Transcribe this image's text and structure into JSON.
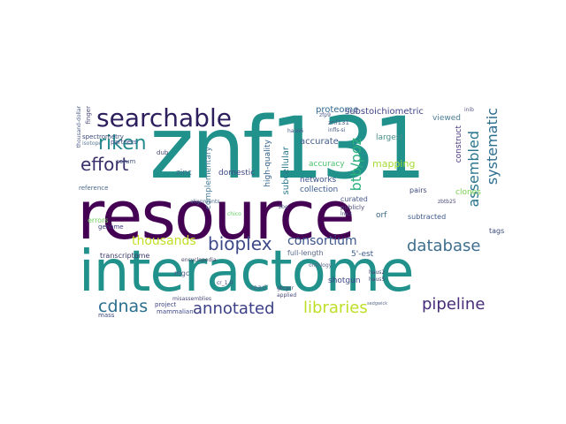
{
  "words": [
    {
      "text": "resource",
      "color": "#440154"
    },
    {
      "text": "interactome",
      "color": "#21918c"
    },
    {
      "text": "znf131",
      "color": "#21918c"
    },
    {
      "text": "searchable",
      "color": "#2d1e5e"
    },
    {
      "text": "riken",
      "color": "#238a8d"
    },
    {
      "text": "effort",
      "color": "#3b2f6b"
    },
    {
      "text": "bioplex",
      "color": "#3e4989"
    },
    {
      "text": "database",
      "color": "#3e6f8e"
    },
    {
      "text": "annotated",
      "color": "#3b3f86"
    },
    {
      "text": "cdnas",
      "color": "#2a6f8e"
    },
    {
      "text": "libraries",
      "color": "#bddf26"
    },
    {
      "text": "pipeline",
      "color": "#472c7a"
    },
    {
      "text": "consortium",
      "color": "#3a548c"
    },
    {
      "text": "thousands",
      "color": "#c2df23"
    },
    {
      "text": "assembled",
      "color": "#2a768e"
    },
    {
      "text": "systematic",
      "color": "#2c6e8e"
    },
    {
      "text": "btb/poz",
      "color": "#2db27d"
    },
    {
      "text": "proteome",
      "color": "#31688e"
    },
    {
      "text": "substoichiometric",
      "color": "#414487"
    },
    {
      "text": "inib",
      "color": "#5a5a8a"
    },
    {
      "text": "viewed",
      "color": "#4a7c96"
    },
    {
      "text": "construct",
      "color": "#46337e"
    },
    {
      "text": "largest",
      "color": "#4a8d8c"
    },
    {
      "text": "accurate",
      "color": "#3f5b8c"
    },
    {
      "text": "accuracy",
      "color": "#4ac16d"
    },
    {
      "text": "mapping",
      "color": "#a5db36"
    },
    {
      "text": "networks",
      "color": "#3b528b"
    },
    {
      "text": "collection",
      "color": "#38598c"
    },
    {
      "text": "subcellular",
      "color": "#2a788e"
    },
    {
      "text": "high-quality",
      "color": "#30628d"
    },
    {
      "text": "domestic",
      "color": "#3f4a8a"
    },
    {
      "text": "complementary",
      "color": "#4b7e9a"
    },
    {
      "text": "zinc",
      "color": "#3c6d8e"
    },
    {
      "text": "dub",
      "color": "#4a4a7a"
    },
    {
      "text": "corum",
      "color": "#4a5a8a"
    },
    {
      "text": "partners",
      "color": "#4a4a8a"
    },
    {
      "text": "spectrometry",
      "color": "#3a4a7a"
    },
    {
      "text": "isotope",
      "color": "#5a7a9a"
    },
    {
      "text": "reference",
      "color": "#4a6a8a"
    },
    {
      "text": "errors",
      "color": "#6ccd5a"
    },
    {
      "text": "genome",
      "color": "#3b3b7b"
    },
    {
      "text": "transcriptome",
      "color": "#3a3a6a"
    },
    {
      "text": "mass",
      "color": "#3e4a7e"
    },
    {
      "text": "mammalian",
      "color": "#3e4a89"
    },
    {
      "text": "project",
      "color": "#3f4788"
    },
    {
      "text": "mgc",
      "color": "#4a5a8a"
    },
    {
      "text": "encyclopedia",
      "color": "#4a4a6a"
    },
    {
      "text": "full-length",
      "color": "#5a6a8a"
    },
    {
      "text": "read",
      "color": "#4a6a8a"
    },
    {
      "text": "shotgun",
      "color": "#3f4788"
    },
    {
      "text": "5'-est",
      "color": "#3a5a8a"
    },
    {
      "text": "curated",
      "color": "#4a5a8a"
    },
    {
      "text": "publicly",
      "color": "#4a4a7a"
    },
    {
      "text": "orf",
      "color": "#3a6a8a"
    },
    {
      "text": "pairs",
      "color": "#3f4a7a"
    },
    {
      "text": "subtracted",
      "color": "#3f5a8a"
    },
    {
      "text": "clones",
      "color": "#7ad151"
    },
    {
      "text": "tags",
      "color": "#3a4a7a"
    },
    {
      "text": "misassemblies",
      "color": "#4a4a7a"
    },
    {
      "text": "thousand-dollar",
      "color": "#4a5a8a"
    },
    {
      "text": "finger",
      "color": "#4a4a7a"
    },
    {
      "text": "alignments",
      "color": "#4a6a8a"
    },
    {
      "text": "applied",
      "color": "#4a4a7a"
    },
    {
      "text": "gtcgcr",
      "color": "#4a4a7a"
    },
    {
      "text": "haus2",
      "color": "#4a4a7a"
    },
    {
      "text": "haus5",
      "color": "#4a4a7a"
    },
    {
      "text": "zbtb25",
      "color": "#4a4a7a"
    },
    {
      "text": "lnx3",
      "color": "#4a4a7a"
    },
    {
      "text": "chico",
      "color": "#5ec962"
    },
    {
      "text": "znf131",
      "color": "#4a5a8a"
    },
    {
      "text": "infls-si",
      "color": "#4a5a8a"
    },
    {
      "text": "haus6",
      "color": "#4a5a8a"
    },
    {
      "text": "zfp9",
      "color": "#4a5a8a"
    },
    {
      "text": "cr_1.0",
      "color": "#4a4a7a"
    },
    {
      "text": "ontology",
      "color": "#5a6a8a"
    },
    {
      "text": "zbe",
      "color": "#5a6a8a"
    },
    {
      "text": "sedgwick",
      "color": "#5a6a8a"
    }
  ]
}
